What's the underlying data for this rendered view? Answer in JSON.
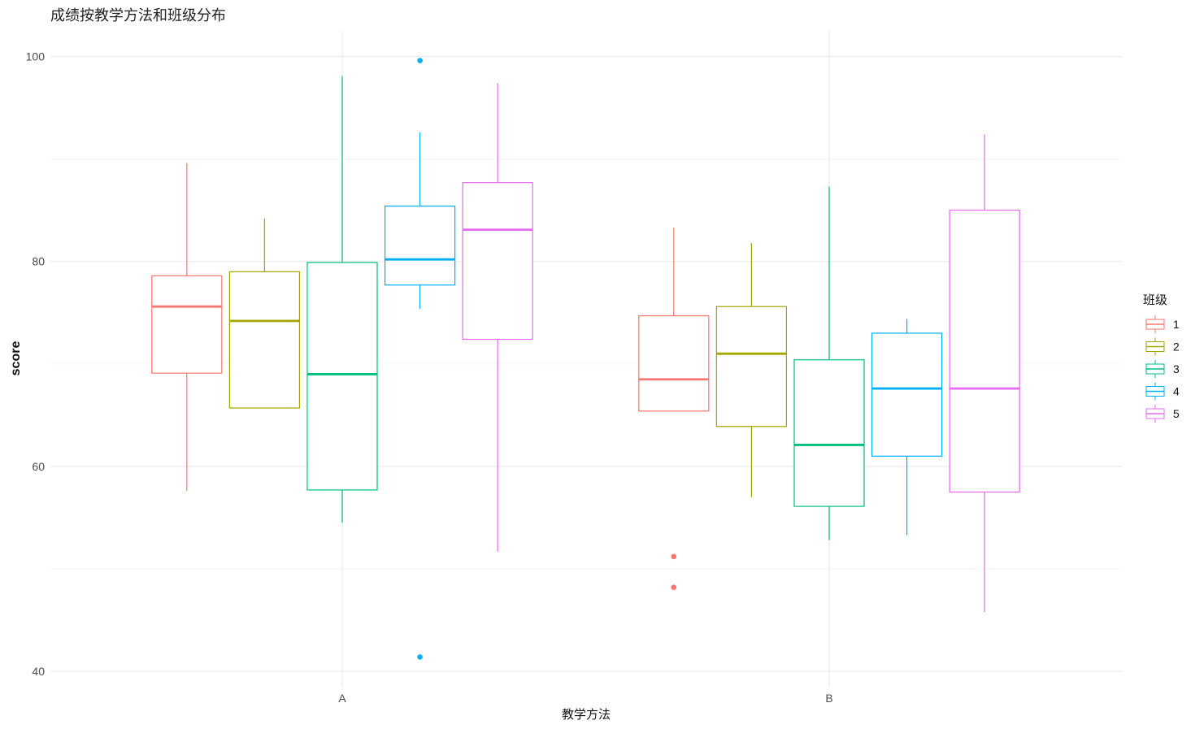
{
  "chart_data": {
    "type": "boxplot",
    "title": "成绩按教学方法和班级分布",
    "xlabel": "教学方法",
    "ylabel": "score",
    "categories": [
      "A",
      "B"
    ],
    "ylim": [
      38.5,
      102.5
    ],
    "yticks": [
      40,
      60,
      80,
      100
    ],
    "grid": true,
    "legend": {
      "title": "班级",
      "position": "right"
    },
    "series": [
      {
        "name": "1",
        "color": "#F8766D",
        "boxes": [
          {
            "category": "A",
            "whisker_low": 57.6,
            "q1": 69.1,
            "median": 75.6,
            "q3": 78.6,
            "whisker_high": 89.6,
            "outliers": []
          },
          {
            "category": "B",
            "whisker_low": 65.4,
            "q1": 65.4,
            "median": 68.5,
            "q3": 74.7,
            "whisker_high": 83.3,
            "outliers": [
              51.2,
              48.2
            ]
          }
        ]
      },
      {
        "name": "2",
        "color": "#A3A500",
        "boxes": [
          {
            "category": "A",
            "whisker_low": 65.7,
            "q1": 65.7,
            "median": 74.2,
            "q3": 79.0,
            "whisker_high": 84.2,
            "outliers": []
          },
          {
            "category": "B",
            "whisker_low": 57.0,
            "q1": 63.9,
            "median": 71.0,
            "q3": 75.6,
            "whisker_high": 81.8,
            "outliers": []
          }
        ]
      },
      {
        "name": "3",
        "color": "#00BF7D",
        "boxes": [
          {
            "category": "A",
            "whisker_low": 54.5,
            "q1": 57.7,
            "median": 69.0,
            "q3": 79.9,
            "whisker_high": 98.1,
            "outliers": []
          },
          {
            "category": "B",
            "whisker_low": 52.8,
            "q1": 56.1,
            "median": 62.1,
            "q3": 70.4,
            "whisker_high": 87.3,
            "outliers": []
          }
        ]
      },
      {
        "name": "4",
        "color": "#00B0F6",
        "boxes": [
          {
            "category": "A",
            "whisker_low": 75.4,
            "q1": 77.7,
            "median": 80.2,
            "q3": 85.4,
            "whisker_high": 92.6,
            "outliers": [
              99.6,
              41.4
            ]
          },
          {
            "category": "B",
            "whisker_low": 53.3,
            "q1": 61.0,
            "median": 67.6,
            "q3": 73.0,
            "whisker_high": 74.4,
            "outliers": []
          }
        ]
      },
      {
        "name": "5",
        "color": "#E76BF3",
        "boxes": [
          {
            "category": "A",
            "whisker_low": 51.7,
            "q1": 72.4,
            "median": 83.1,
            "q3": 87.7,
            "whisker_high": 97.4,
            "outliers": []
          },
          {
            "category": "B",
            "whisker_low": 45.8,
            "q1": 57.5,
            "median": 67.6,
            "q3": 85.0,
            "whisker_high": 92.4,
            "outliers": []
          }
        ]
      }
    ]
  }
}
